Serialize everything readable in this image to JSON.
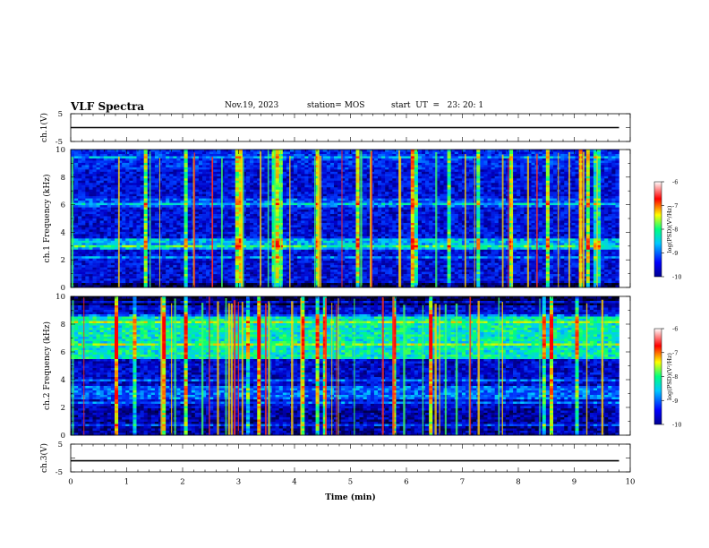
{
  "header": {
    "title": "VLF Spectra",
    "date": "Nov.19, 2023",
    "station": "station= MOS",
    "start": "start  UT  =   23: 20: 1"
  },
  "chart_data": [
    {
      "type": "line",
      "title": "",
      "xlabel": "",
      "ylabel": "ch.1(V)",
      "xlim": [
        0,
        10
      ],
      "ylim": [
        -5,
        5
      ],
      "yticks": [
        "5",
        "-5"
      ],
      "series": [
        {
          "x": [
            0,
            9.8
          ],
          "y": [
            0,
            0
          ]
        }
      ]
    },
    {
      "type": "heatmap",
      "ylabel": "ch.1  Frequency (kHz)",
      "xlim": [
        0,
        10
      ],
      "ylim": [
        0,
        10
      ],
      "yticks": [
        "0",
        "2",
        "4",
        "6",
        "8",
        "10"
      ],
      "data_extent_x": [
        0,
        9.8
      ],
      "colorbar": {
        "label": "log(PSD)(V²/Hz)",
        "ticks": [
          "-6",
          "-7",
          "-8",
          "-9",
          "-10"
        ],
        "range": [
          -10,
          -6
        ]
      }
    },
    {
      "type": "heatmap",
      "ylabel": "ch.2  Frequency (kHz)",
      "xlim": [
        0,
        10
      ],
      "ylim": [
        0,
        10
      ],
      "yticks": [
        "0",
        "2",
        "4",
        "6",
        "8",
        "10"
      ],
      "data_extent_x": [
        0,
        9.8
      ],
      "colorbar": {
        "label": "log(PSD)(V²/Hz)",
        "ticks": [
          "-6",
          "-7",
          "-8",
          "-9",
          "-10"
        ],
        "range": [
          -10,
          -6
        ]
      }
    },
    {
      "type": "line",
      "ylabel": "ch.3(V)",
      "xlabel": "Time  (min)",
      "xlim": [
        0,
        10
      ],
      "ylim": [
        -5,
        5
      ],
      "yticks": [
        "5",
        "-5"
      ],
      "xticks": [
        "0",
        "1",
        "2",
        "3",
        "4",
        "5",
        "6",
        "7",
        "8",
        "9",
        "10"
      ],
      "series": [
        {
          "x": [
            0,
            9.8
          ],
          "y": [
            -1,
            -1
          ]
        }
      ]
    }
  ]
}
